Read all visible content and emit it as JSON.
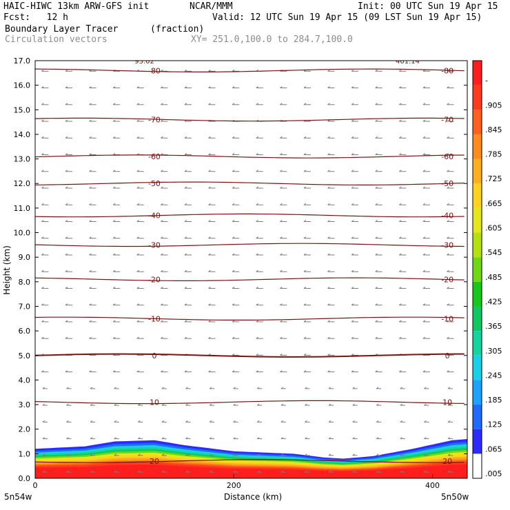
{
  "header": {
    "title": "HAIC-HIWC 13km ARW-GFS init",
    "org": "NCAR/MMM",
    "init": "Init: 00 UTC Sun 19 Apr 15",
    "fcst": "Fcst:   12 h",
    "valid": "Valid: 12 UTC Sun 19 Apr 15 (09 LST Sun 19 Apr 15)",
    "field1": "Boundary Layer Tracer",
    "field1_units": "(fraction)",
    "field2": "Circulation vectors",
    "xy": "XY= 251.0,100.0 to 284.7,100.0"
  },
  "chart_data": {
    "type": "heatmap",
    "xlabel": "Distance (km)",
    "ylabel": "Height (km)",
    "xlim": [
      0,
      435
    ],
    "ylim": [
      0.0,
      17.0
    ],
    "x_ticks": [
      0,
      200,
      400
    ],
    "y_ticks": [
      "0.0",
      "1.0",
      "2.0",
      "3.0",
      "4.0",
      "5.0",
      "6.0",
      "7.0",
      "8.0",
      "9.0",
      "10.0",
      "11.0",
      "12.0",
      "13.0",
      "14.0",
      "15.0",
      "16.0",
      "17.0"
    ],
    "x_end_labels": [
      "5n54w",
      "5n50w"
    ],
    "colorbar_labels": [
      ".005",
      ".065",
      ".125",
      ".185",
      ".245",
      ".305",
      ".365",
      ".425",
      ".485",
      ".545",
      ".605",
      ".665",
      ".725",
      ".785",
      ".845",
      ".905",
      "-"
    ],
    "colorbar_colors": [
      "#ffffff",
      "#2b2bff",
      "#1f6bff",
      "#1aa3ff",
      "#18d0e8",
      "#14d4a0",
      "#10c860",
      "#18c818",
      "#70d810",
      "#b4e010",
      "#e6e61a",
      "#ffd21e",
      "#ffae1e",
      "#ff8a1e",
      "#ff601e",
      "#ff3a1e",
      "#ff1e1e"
    ],
    "temperature_contours": [
      {
        "label": "0",
        "height": 5.0
      },
      {
        "label": "-10",
        "height": 6.5
      },
      {
        "label": "-20",
        "height": 8.1
      },
      {
        "label": "-30",
        "height": 9.5
      },
      {
        "label": "-40",
        "height": 10.7
      },
      {
        "label": "-50",
        "height": 12.0
      },
      {
        "label": "-60",
        "height": 13.1
      },
      {
        "label": "-70",
        "height": 14.6
      },
      {
        "label": "-80",
        "height": 16.6
      },
      {
        "label": "10",
        "height": 3.1
      },
      {
        "label": "20",
        "height": 0.7
      }
    ],
    "top_labels": [
      "93.02",
      "401.14"
    ],
    "boundary_layer_top_km": [
      [
        0,
        1.2
      ],
      [
        50,
        1.3
      ],
      [
        80,
        1.5
      ],
      [
        120,
        1.55
      ],
      [
        150,
        1.35
      ],
      [
        200,
        1.1
      ],
      [
        260,
        1.0
      ],
      [
        290,
        0.85
      ],
      [
        310,
        0.8
      ],
      [
        340,
        0.9
      ],
      [
        380,
        1.2
      ],
      [
        420,
        1.55
      ],
      [
        435,
        1.6
      ]
    ]
  }
}
